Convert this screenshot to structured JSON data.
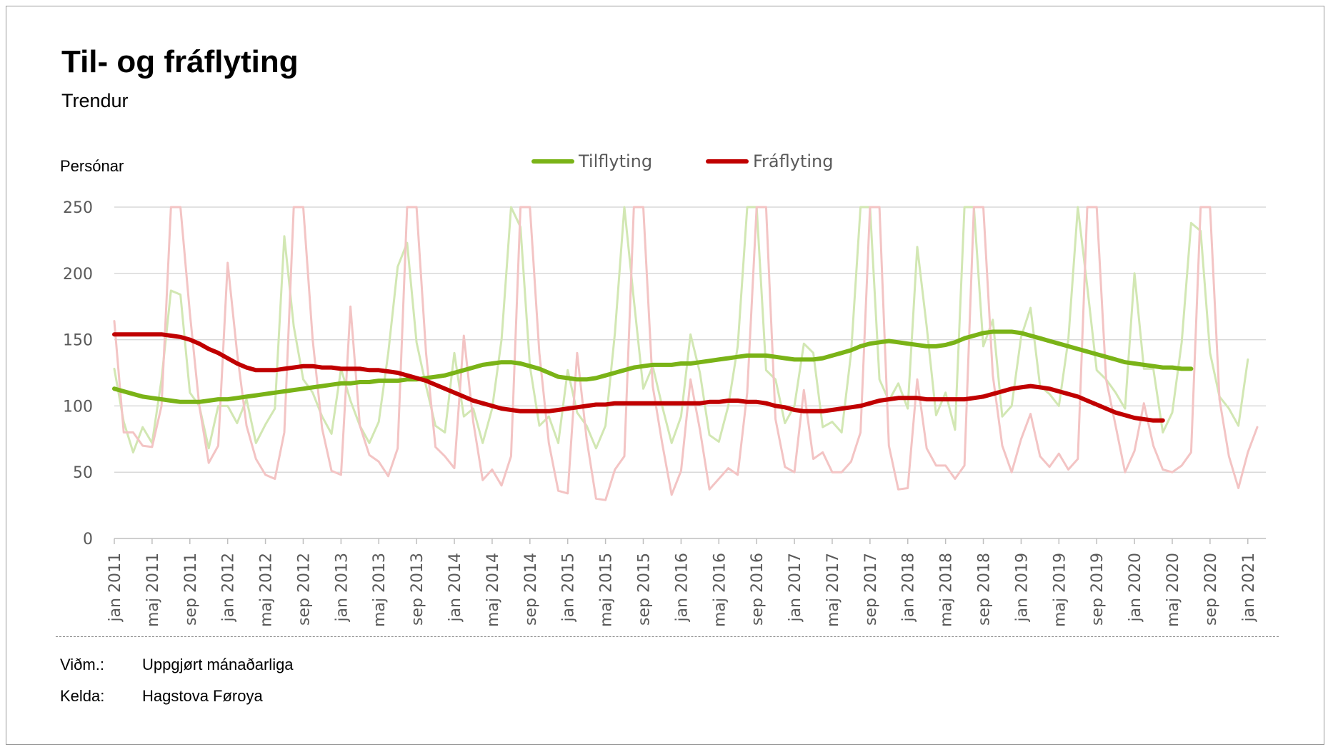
{
  "page": {
    "title": "Til- og fráflyting",
    "subtitle": "Trendur",
    "notes": [
      {
        "key": "Viðm.:",
        "value": "Uppgjørt mánaðarliga"
      },
      {
        "key": "Kelda:",
        "value": "Hagstova Føroya"
      }
    ]
  },
  "chart_data": {
    "type": "line",
    "ylabel": "Persónar",
    "ylim": [
      0,
      250
    ],
    "y_ticks": [
      0,
      50,
      100,
      150,
      200,
      250
    ],
    "grid": true,
    "legend_position": "top-center",
    "x_start": "jan 2011",
    "x_tick_labels": [
      "jan 2011",
      "maj 2011",
      "sep 2011",
      "jan 2012",
      "maj 2012",
      "sep 2012",
      "jan 2013",
      "maj 2013",
      "sep 2013",
      "jan 2014",
      "maj 2014",
      "sep 2014",
      "jan 2015",
      "maj 2015",
      "sep 2015",
      "jan 2016",
      "maj 2016",
      "sep 2016",
      "jan 2017",
      "maj 2017",
      "sep 2017",
      "jan 2018",
      "maj 2018",
      "sep 2018",
      "jan 2019",
      "maj 2019",
      "sep 2019",
      "jan 2020",
      "maj 2020",
      "sep 2020",
      "jan 2021"
    ],
    "series": [
      {
        "name": "Tilflyting",
        "kind": "trend",
        "color": "#7ab317",
        "values": [
          113,
          111,
          109,
          107,
          106,
          105,
          104,
          103,
          103,
          103,
          104,
          105,
          105,
          106,
          107,
          108,
          109,
          110,
          111,
          112,
          113,
          114,
          115,
          116,
          117,
          117,
          118,
          118,
          119,
          119,
          119,
          120,
          120,
          121,
          122,
          123,
          125,
          127,
          129,
          131,
          132,
          133,
          133,
          132,
          130,
          128,
          125,
          122,
          121,
          120,
          120,
          121,
          123,
          125,
          127,
          129,
          130,
          131,
          131,
          131,
          132,
          132,
          133,
          134,
          135,
          136,
          137,
          138,
          138,
          138,
          137,
          136,
          135,
          135,
          135,
          136,
          138,
          140,
          142,
          145,
          147,
          148,
          149,
          148,
          147,
          146,
          145,
          145,
          146,
          148,
          151,
          153,
          155,
          156,
          156,
          156,
          155,
          153,
          151,
          149,
          147,
          145,
          143,
          141,
          139,
          137,
          135,
          133,
          132,
          131,
          130,
          129,
          129,
          128,
          128
        ]
      },
      {
        "name": "Fráflyting",
        "kind": "trend",
        "color": "#c00000",
        "values": [
          154,
          154,
          154,
          154,
          154,
          154,
          153,
          152,
          150,
          147,
          143,
          140,
          136,
          132,
          129,
          127,
          127,
          127,
          128,
          129,
          130,
          130,
          129,
          129,
          128,
          128,
          128,
          127,
          127,
          126,
          125,
          123,
          121,
          119,
          116,
          113,
          110,
          107,
          104,
          102,
          100,
          98,
          97,
          96,
          96,
          96,
          96,
          97,
          98,
          99,
          100,
          101,
          101,
          102,
          102,
          102,
          102,
          102,
          102,
          102,
          102,
          102,
          102,
          103,
          103,
          104,
          104,
          103,
          103,
          102,
          100,
          99,
          97,
          96,
          96,
          96,
          97,
          98,
          99,
          100,
          102,
          104,
          105,
          106,
          106,
          106,
          105,
          105,
          105,
          105,
          105,
          106,
          107,
          109,
          111,
          113,
          114,
          115,
          114,
          113,
          111,
          109,
          107,
          104,
          101,
          98,
          95,
          93,
          91,
          90,
          89,
          89
        ]
      },
      {
        "name": "Tilflyting",
        "kind": "monthly",
        "color": "#d2e7b3",
        "values": [
          128,
          88,
          65,
          84,
          72,
          120,
          187,
          184,
          110,
          100,
          68,
          100,
          100,
          87,
          105,
          72,
          86,
          98,
          228,
          160,
          120,
          110,
          92,
          79,
          128,
          104,
          85,
          72,
          88,
          140,
          205,
          223,
          148,
          115,
          85,
          80,
          140,
          92,
          98,
          72,
          98,
          150,
          255,
          235,
          130,
          85,
          92,
          72,
          127,
          95,
          85,
          68,
          85,
          155,
          255,
          180,
          113,
          130,
          100,
          72,
          92,
          154,
          125,
          78,
          73,
          100,
          145,
          255,
          255,
          127,
          120,
          87,
          100,
          147,
          140,
          84,
          88,
          80,
          140,
          255,
          255,
          120,
          104,
          117,
          98,
          220,
          160,
          93,
          110,
          82,
          255,
          255,
          145,
          165,
          92,
          100,
          152,
          174,
          115,
          109,
          100,
          150,
          255,
          190,
          127,
          120,
          110,
          98,
          200,
          128,
          128,
          80,
          95,
          148,
          238,
          232,
          140,
          107,
          98,
          85,
          135
        ]
      },
      {
        "name": "Fráflyting",
        "kind": "monthly",
        "color": "#f3c4c4",
        "values": [
          164,
          80,
          80,
          70,
          69,
          100,
          255,
          255,
          170,
          100,
          57,
          70,
          208,
          140,
          85,
          60,
          48,
          45,
          80,
          255,
          255,
          150,
          83,
          51,
          48,
          175,
          85,
          63,
          58,
          47,
          68,
          255,
          255,
          140,
          69,
          62,
          53,
          153,
          88,
          44,
          52,
          40,
          62,
          255,
          255,
          140,
          72,
          36,
          34,
          140,
          75,
          30,
          29,
          52,
          62,
          255,
          255,
          115,
          72,
          33,
          51,
          120,
          82,
          37,
          45,
          53,
          48,
          110,
          255,
          255,
          90,
          54,
          50,
          112,
          60,
          65,
          50,
          50,
          58,
          80,
          255,
          255,
          70,
          37,
          38,
          120,
          68,
          55,
          55,
          45,
          55,
          255,
          255,
          123,
          70,
          50,
          75,
          94,
          62,
          54,
          64,
          52,
          60,
          255,
          255,
          120,
          85,
          50,
          66,
          102,
          70,
          52,
          50,
          55,
          65,
          255,
          255,
          105,
          62,
          38,
          65,
          84
        ]
      }
    ]
  }
}
